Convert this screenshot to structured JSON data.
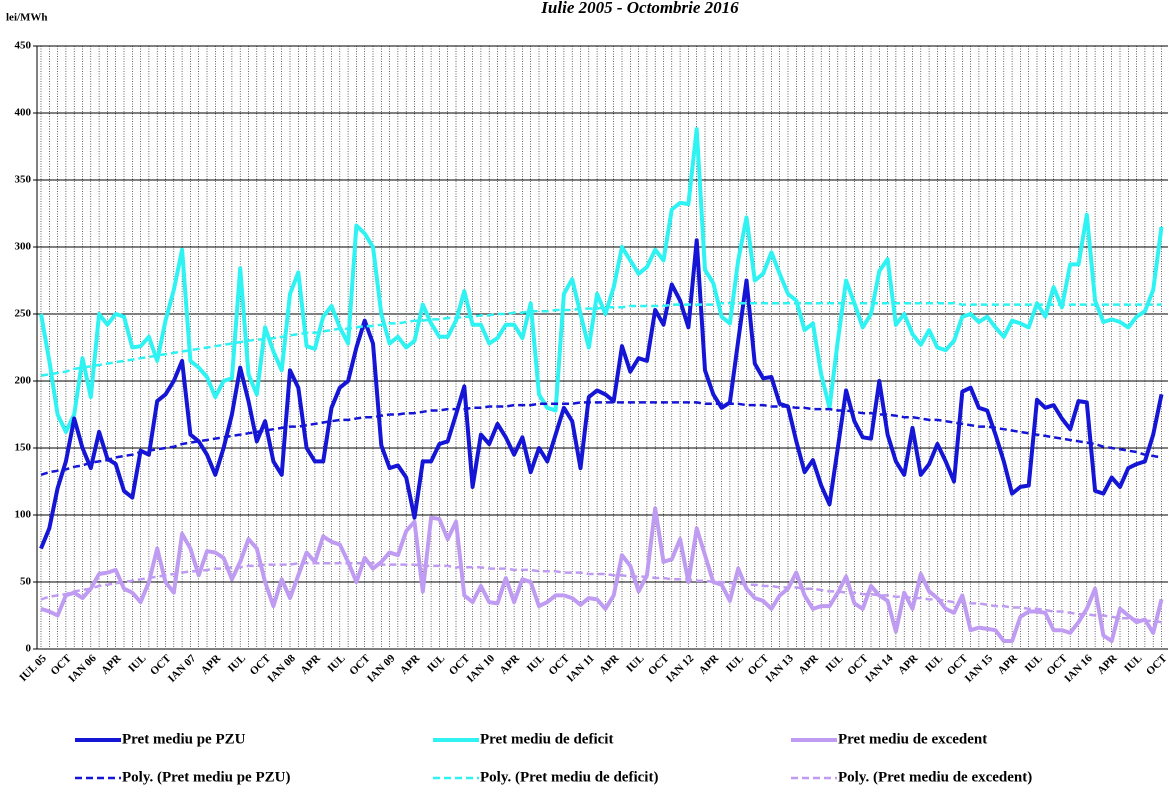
{
  "chart_data": {
    "type": "line",
    "title": "Iulie 2005 - Octombrie 2016",
    "y_label": "lei/MWh",
    "categories": [
      "IUL 05",
      null,
      null,
      "OCT",
      null,
      null,
      "IAN 06",
      null,
      null,
      "APR",
      null,
      null,
      "IUL",
      null,
      null,
      "OCT",
      null,
      null,
      "IAN 07",
      null,
      null,
      "APR",
      null,
      null,
      "IUL",
      null,
      null,
      "OCT",
      null,
      null,
      "IAN 08",
      null,
      null,
      "APR",
      null,
      null,
      "IUL",
      null,
      null,
      "OCT",
      null,
      null,
      "IAN 09",
      null,
      null,
      "APR",
      null,
      null,
      "IUL",
      null,
      null,
      "OCT",
      null,
      null,
      "IAN 10",
      null,
      null,
      "APR",
      null,
      null,
      "IUL",
      null,
      null,
      "OCT",
      null,
      null,
      "IAN 11",
      null,
      null,
      "APR",
      null,
      null,
      "IUL",
      null,
      null,
      "OCT",
      null,
      null,
      "IAN 12",
      null,
      null,
      "APR",
      null,
      null,
      "IUL",
      null,
      null,
      "OCT",
      null,
      null,
      "IAN 13",
      null,
      null,
      "APR",
      null,
      null,
      "IUL",
      null,
      null,
      "OCT",
      null,
      null,
      "IAN 14",
      null,
      null,
      "APR",
      null,
      null,
      "IUL",
      null,
      null,
      "OCT",
      null,
      null,
      "IAN 15",
      null,
      null,
      "APR",
      null,
      null,
      "IUL",
      null,
      null,
      "OCT",
      null,
      null,
      "IAN 16",
      null,
      null,
      "APR",
      null,
      null,
      "IUL",
      null,
      null,
      "OCT"
    ],
    "ylim": [
      0,
      450
    ],
    "yticks": [
      0,
      50,
      100,
      150,
      200,
      250,
      300,
      350,
      400,
      450
    ],
    "grid": true,
    "legend": "bottom",
    "series": [
      {
        "name": "Pret mediu pe PZU",
        "color": "#1515d6",
        "style": "solid",
        "values": [
          75,
          90,
          120,
          140,
          172,
          150,
          135,
          162,
          142,
          138,
          118,
          113,
          148,
          145,
          185,
          190,
          200,
          215,
          160,
          155,
          145,
          130,
          150,
          175,
          210,
          185,
          155,
          170,
          140,
          130,
          208,
          195,
          150,
          140,
          140,
          180,
          195,
          200,
          225,
          245,
          228,
          152,
          135,
          137,
          128,
          98,
          140,
          140,
          153,
          155,
          175,
          196,
          121,
          160,
          153,
          168,
          158,
          145,
          158,
          132,
          150,
          140,
          160,
          180,
          170,
          135,
          188,
          193,
          190,
          185,
          226,
          207,
          217,
          215,
          253,
          242,
          272,
          260,
          240,
          305,
          208,
          190,
          180,
          184,
          230,
          275,
          213,
          202,
          203,
          183,
          181,
          155,
          132,
          141,
          122,
          108,
          150,
          193,
          170,
          158,
          157,
          200,
          160,
          140,
          130,
          165,
          130,
          138,
          153,
          140,
          125,
          192,
          195,
          180,
          178,
          160,
          140,
          116,
          121,
          122,
          186,
          180,
          182,
          172,
          164,
          185,
          184,
          118,
          116,
          128,
          121,
          135,
          138,
          140,
          160,
          190
        ]
      },
      {
        "name": "Pret mediu de deficit",
        "color": "#2ff2f2",
        "style": "solid",
        "values": [
          250,
          215,
          175,
          162,
          175,
          217,
          188,
          250,
          242,
          250,
          248,
          225,
          226,
          233,
          215,
          245,
          268,
          298,
          215,
          210,
          203,
          188,
          200,
          202,
          284,
          205,
          190,
          240,
          222,
          208,
          265,
          281,
          226,
          224,
          248,
          256,
          240,
          228,
          316,
          310,
          300,
          250,
          228,
          233,
          225,
          230,
          257,
          243,
          233,
          233,
          245,
          267,
          242,
          242,
          228,
          232,
          242,
          242,
          232,
          258,
          190,
          180,
          178,
          265,
          276,
          250,
          225,
          265,
          250,
          270,
          300,
          290,
          280,
          285,
          298,
          290,
          328,
          333,
          332,
          388,
          283,
          273,
          248,
          243,
          290,
          322,
          275,
          280,
          296,
          280,
          265,
          260,
          238,
          243,
          205,
          180,
          230,
          275,
          258,
          240,
          250,
          282,
          291,
          242,
          250,
          235,
          227,
          238,
          225,
          223,
          230,
          248,
          250,
          244,
          248,
          240,
          233,
          245,
          243,
          240,
          258,
          248,
          270,
          255,
          287,
          287,
          324,
          260,
          244,
          246,
          244,
          240,
          248,
          252,
          268,
          315
        ]
      },
      {
        "name": "Pret mediu de excedent",
        "color": "#bf9cf2",
        "style": "solid",
        "values": [
          30,
          28,
          25,
          40,
          42,
          38,
          45,
          56,
          57,
          59,
          45,
          42,
          35,
          50,
          75,
          50,
          42,
          86,
          75,
          55,
          73,
          72,
          68,
          52,
          65,
          82,
          75,
          50,
          32,
          52,
          38,
          55,
          72,
          65,
          84,
          80,
          78,
          65,
          50,
          68,
          60,
          65,
          72,
          70,
          88,
          95,
          43,
          98,
          97,
          82,
          95,
          40,
          35,
          47,
          35,
          34,
          53,
          35,
          52,
          50,
          32,
          35,
          40,
          40,
          38,
          33,
          38,
          37,
          30,
          40,
          70,
          62,
          43,
          55,
          105,
          65,
          67,
          82,
          50,
          90,
          70,
          50,
          48,
          36,
          60,
          45,
          38,
          36,
          30,
          40,
          45,
          57,
          40,
          30,
          32,
          32,
          42,
          54,
          34,
          30,
          47,
          40,
          36,
          13,
          42,
          30,
          56,
          43,
          38,
          30,
          27,
          40,
          14,
          16,
          15,
          14,
          6,
          6,
          24,
          28,
          28,
          27,
          14,
          14,
          12,
          20,
          30,
          45,
          10,
          6,
          30,
          25,
          20,
          22,
          12,
          37
        ]
      },
      {
        "name": "Poly. (Pret mediu pe PZU)",
        "color": "#1515d6",
        "style": "dashed",
        "values": [
          130,
          132,
          133,
          134,
          136,
          137,
          139,
          140,
          141,
          143,
          144,
          145,
          147,
          148,
          149,
          150,
          151,
          153,
          154,
          155,
          156,
          157,
          158,
          159,
          160,
          161,
          162,
          163,
          164,
          165,
          166,
          166,
          167,
          168,
          169,
          170,
          171,
          171,
          172,
          173,
          173,
          174,
          175,
          175,
          176,
          176,
          177,
          178,
          178,
          179,
          179,
          179,
          180,
          180,
          181,
          181,
          181,
          182,
          182,
          182,
          183,
          183,
          183,
          183,
          183,
          184,
          184,
          184,
          184,
          184,
          184,
          184,
          184,
          184,
          184,
          184,
          184,
          184,
          184,
          184,
          183,
          183,
          183,
          183,
          183,
          182,
          182,
          182,
          181,
          181,
          181,
          180,
          180,
          179,
          179,
          179,
          178,
          178,
          177,
          176,
          176,
          175,
          175,
          174,
          173,
          173,
          172,
          171,
          171,
          170,
          169,
          168,
          167,
          166,
          166,
          165,
          164,
          163,
          162,
          161,
          160,
          159,
          158,
          157,
          156,
          155,
          154,
          153,
          151,
          150,
          149,
          148,
          147,
          145,
          144,
          143
        ]
      },
      {
        "name": "Poly. (Pret mediu de deficit)",
        "color": "#2ff2f2",
        "style": "dashed",
        "values": [
          204,
          205,
          206,
          207,
          209,
          210,
          211,
          212,
          213,
          214,
          215,
          216,
          217,
          218,
          219,
          220,
          221,
          222,
          223,
          224,
          225,
          226,
          227,
          228,
          229,
          230,
          231,
          231,
          232,
          233,
          234,
          235,
          236,
          236,
          237,
          238,
          239,
          239,
          240,
          241,
          241,
          242,
          243,
          243,
          244,
          245,
          245,
          246,
          246,
          247,
          247,
          248,
          248,
          249,
          249,
          250,
          250,
          251,
          251,
          252,
          252,
          252,
          253,
          253,
          253,
          254,
          254,
          254,
          255,
          255,
          255,
          256,
          256,
          256,
          256,
          256,
          257,
          257,
          257,
          257,
          257,
          257,
          258,
          258,
          258,
          258,
          258,
          258,
          258,
          258,
          258,
          258,
          258,
          258,
          258,
          258,
          258,
          258,
          258,
          258,
          258,
          258,
          258,
          258,
          258,
          258,
          258,
          258,
          258,
          258,
          258,
          257,
          257,
          257,
          257,
          257,
          257,
          257,
          257,
          257,
          257,
          257,
          257,
          257,
          257,
          257,
          257,
          257,
          257,
          257,
          257,
          257,
          257,
          257,
          257,
          257
        ]
      },
      {
        "name": "Poly. (Pret mediu de excedent)",
        "color": "#bf9cf2",
        "style": "dashed",
        "values": [
          37,
          39,
          40,
          41,
          43,
          44,
          45,
          47,
          48,
          49,
          50,
          51,
          52,
          53,
          54,
          55,
          56,
          57,
          58,
          58,
          59,
          60,
          60,
          61,
          61,
          62,
          62,
          63,
          63,
          63,
          63,
          64,
          64,
          64,
          64,
          64,
          64,
          64,
          64,
          64,
          64,
          63,
          63,
          63,
          63,
          63,
          62,
          62,
          62,
          62,
          61,
          61,
          61,
          61,
          60,
          60,
          60,
          59,
          59,
          59,
          58,
          58,
          58,
          57,
          57,
          57,
          56,
          56,
          56,
          55,
          55,
          54,
          54,
          54,
          53,
          53,
          52,
          52,
          52,
          51,
          51,
          50,
          50,
          49,
          49,
          48,
          48,
          47,
          47,
          46,
          46,
          46,
          45,
          45,
          44,
          43,
          43,
          42,
          42,
          41,
          41,
          40,
          40,
          39,
          39,
          38,
          38,
          37,
          37,
          36,
          35,
          35,
          34,
          34,
          33,
          32,
          32,
          31,
          31,
          30,
          30,
          29,
          28,
          28,
          27,
          26,
          26,
          25,
          25,
          24,
          23,
          23,
          22,
          21,
          21,
          20
        ]
      }
    ]
  }
}
